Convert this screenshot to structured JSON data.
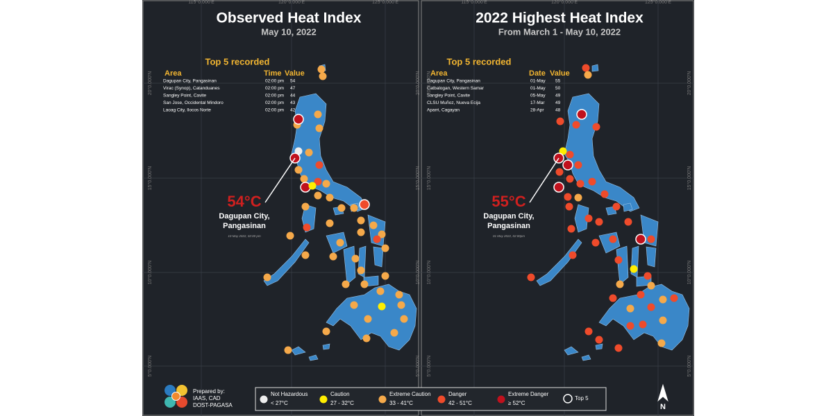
{
  "panels": [
    {
      "title": "Observed Heat Index",
      "subtitle": "May 10, 2022",
      "top5_title": "Top 5 recorded",
      "columns": [
        "Area",
        "Time",
        "Value"
      ],
      "rows": [
        [
          "Dagupan City, Pangasinan",
          "02:00 pm",
          "54"
        ],
        [
          "Virac (Synop), Catanduanes",
          "02:00 pm",
          "47"
        ],
        [
          "Sangley Point, Cavite",
          "02:00 pm",
          "44"
        ],
        [
          "San Jose, Occidental Mindoro",
          "02:00 pm",
          "43"
        ],
        [
          "Laoag City, Ilocos Norte",
          "02:00 pm",
          "42"
        ]
      ],
      "callout": {
        "value": "54°C",
        "place": [
          "Dagupan City,",
          "Pangasinan"
        ],
        "note": "10 May 2022, 02:00 pm"
      }
    },
    {
      "title": "2022 Highest Heat Index",
      "subtitle": "From March 1 - May 10, 2022",
      "top5_title": "Top 5 recorded",
      "columns": [
        "Area",
        "Date",
        "Value"
      ],
      "rows": [
        [
          "Dagupan City, Pangasinan",
          "01-May",
          "55"
        ],
        [
          "Catbalogan, Western Samar",
          "01-May",
          "50"
        ],
        [
          "Sangley Point, Cavite",
          "05-May",
          "49"
        ],
        [
          "CLSU Muñoz, Nueva Ecija",
          "17-Mar",
          "49"
        ],
        [
          "Aparri, Cagayan",
          "28-Apr",
          "48"
        ]
      ],
      "callout": {
        "value": "55°C",
        "place": [
          "Dagupan City,",
          "Pangasinan"
        ],
        "note": "01 May 2022, 02:00pm"
      }
    }
  ],
  "legend": {
    "items": [
      {
        "label": "Not Hazardous",
        "range": "< 27°C"
      },
      {
        "label": "Caution",
        "range": "27 - 32°C"
      },
      {
        "label": "Extreme Caution",
        "range": "33 - 41°C"
      },
      {
        "label": "Danger",
        "range": "42 - 51°C"
      },
      {
        "label": "Extreme Danger",
        "range": "≥ 52°C"
      }
    ],
    "top5": "Top 5"
  },
  "credit": [
    "Prepared by:",
    "IAAS, CAD",
    "DOST-PAGASA"
  ],
  "north": "N",
  "coordinates": {
    "lat": [
      "20°0.000'N",
      "15°0.000'N",
      "10°0.000'N",
      "5°0.000'N"
    ],
    "lon": [
      "115°0.000'E",
      "120°0.000'E",
      "125°0.000'E"
    ]
  }
}
